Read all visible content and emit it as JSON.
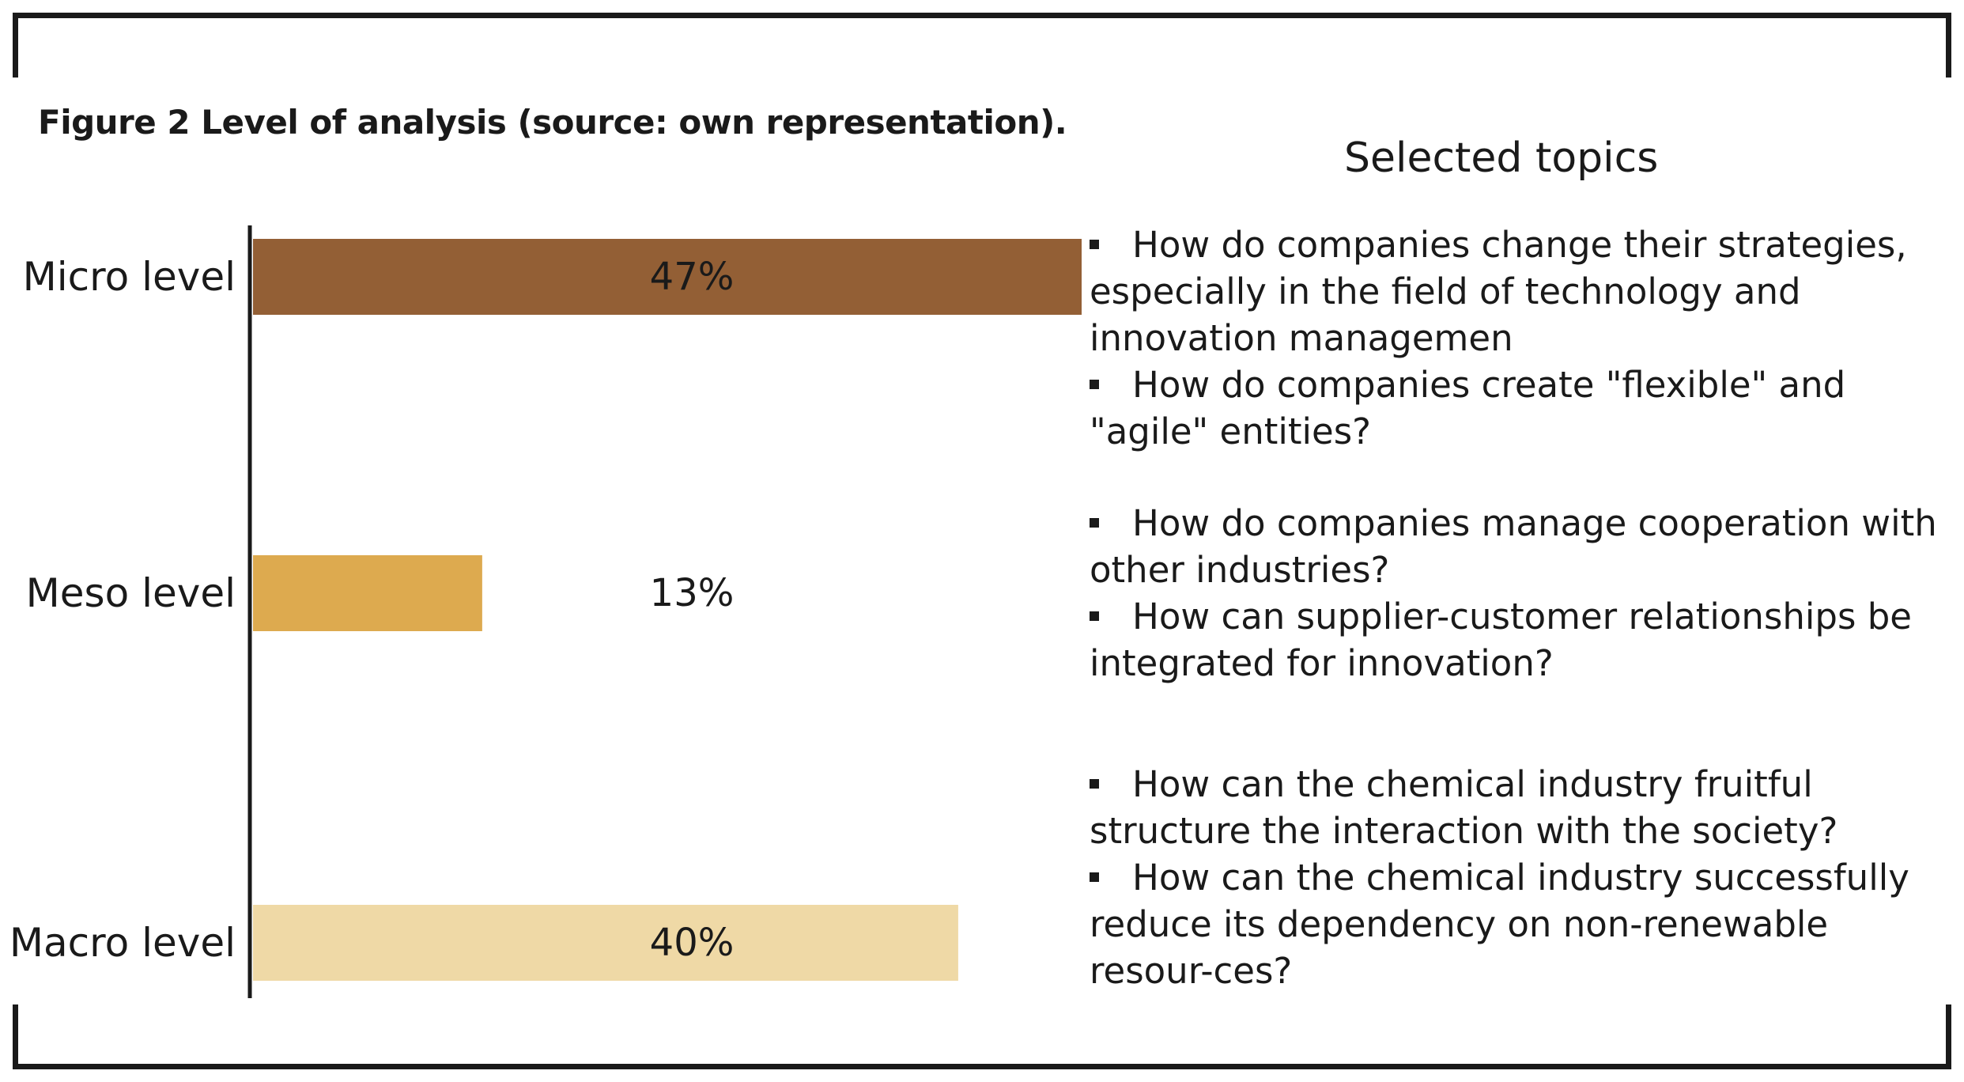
{
  "caption": "Figure 2 Level of analysis (source: own representation).",
  "topics_heading": "Selected topics",
  "chart_data": {
    "type": "bar",
    "orientation": "horizontal",
    "categories": [
      "Micro level",
      "Meso level",
      "Macro level"
    ],
    "values": [
      47,
      13,
      40
    ],
    "data_labels": [
      "47%",
      "13%",
      "40%"
    ],
    "colors": [
      "#935f35",
      "#ddaa4f",
      "#efd9a6"
    ],
    "title": "",
    "xlabel": "",
    "ylabel": "",
    "xlim": [
      0,
      47
    ],
    "grid": false,
    "legend": "none"
  },
  "topics": [
    {
      "level": "Micro level",
      "items": [
        "How do companies change their strategies, especially in the field of technology and innovation managemen",
        "How do companies create \"flexible\" and \"agile\" entities?"
      ]
    },
    {
      "level": "Meso level",
      "items": [
        "How do companies manage cooperation with other industries?",
        "How can supplier-customer relationships be integrated for innovation?"
      ]
    },
    {
      "level": "Macro level",
      "items": [
        "How can the chemical industry fruitful structure the interaction with the society?",
        "How can the chemical industry successfully reduce its dependency on non-renewable resour-ces?"
      ]
    }
  ]
}
